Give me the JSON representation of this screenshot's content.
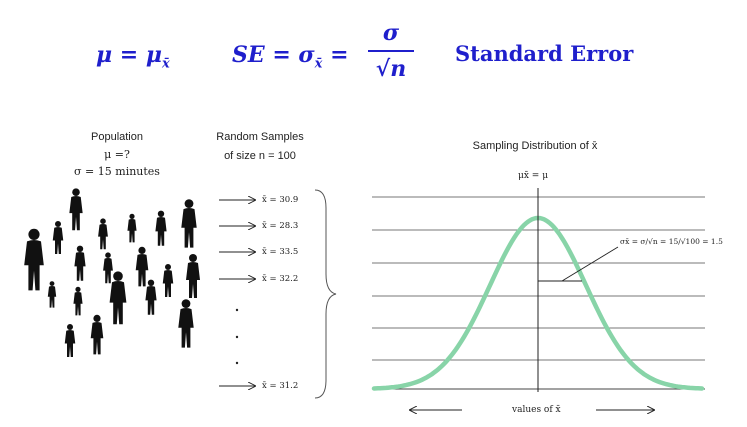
{
  "formula": {
    "mean_eq": "μ = μ",
    "mean_sub": "x̄",
    "se_prefix": "SE  =  σ",
    "se_sub": "x̄",
    "se_eq": " =",
    "sigma": "σ",
    "sqrt_n": "√n",
    "label": "Standard Error"
  },
  "population": {
    "title": "Population",
    "mu": "μ =?",
    "sigma": "σ = 15 minutes"
  },
  "samples": {
    "title": "Random Samples",
    "size": "of size n = 100",
    "items": [
      "x̄ = 30.9",
      "x̄ = 28.3",
      "x̄ = 33.5",
      "x̄ = 32.2",
      "x̄ = 31.2"
    ]
  },
  "distribution": {
    "title": "Sampling Distribution of x̄",
    "center_label": "μx̄ = μ",
    "se_annotation": "σx̄ = σ/√n = 15/√100 = 1.5",
    "x_label": "values of x̄"
  },
  "colors": {
    "formula_text": "#1f1fcc",
    "curve": "#88d4a8",
    "silhouette": "#111111",
    "gridline": "#777777"
  }
}
